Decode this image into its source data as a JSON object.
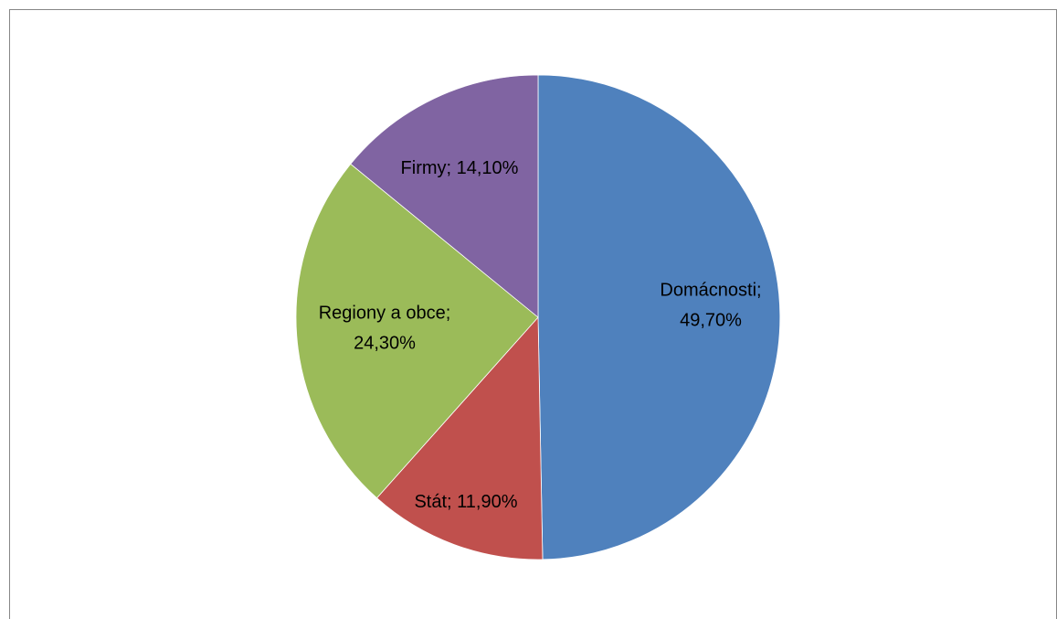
{
  "chart_data": {
    "type": "pie",
    "title": "",
    "start_angle_deg": 0,
    "direction": "clockwise",
    "slices": [
      {
        "name": "Domácnosti",
        "value": 49.7,
        "label_lines": [
          "Domácnosti;",
          "49,70%"
        ],
        "color": "#4F81BD"
      },
      {
        "name": "Stát",
        "value": 11.9,
        "label_lines": [
          "Stát; 11,90%"
        ],
        "color": "#C0504D"
      },
      {
        "name": "Regiony a obce",
        "value": 24.3,
        "label_lines": [
          "Regiony a obce;",
          "24,30%"
        ],
        "color": "#9BBB59"
      },
      {
        "name": "Firmy",
        "value": 14.1,
        "label_lines": [
          "Firmy; 14,10%"
        ],
        "color": "#8064A2"
      }
    ],
    "legend": "none",
    "grid": false
  }
}
